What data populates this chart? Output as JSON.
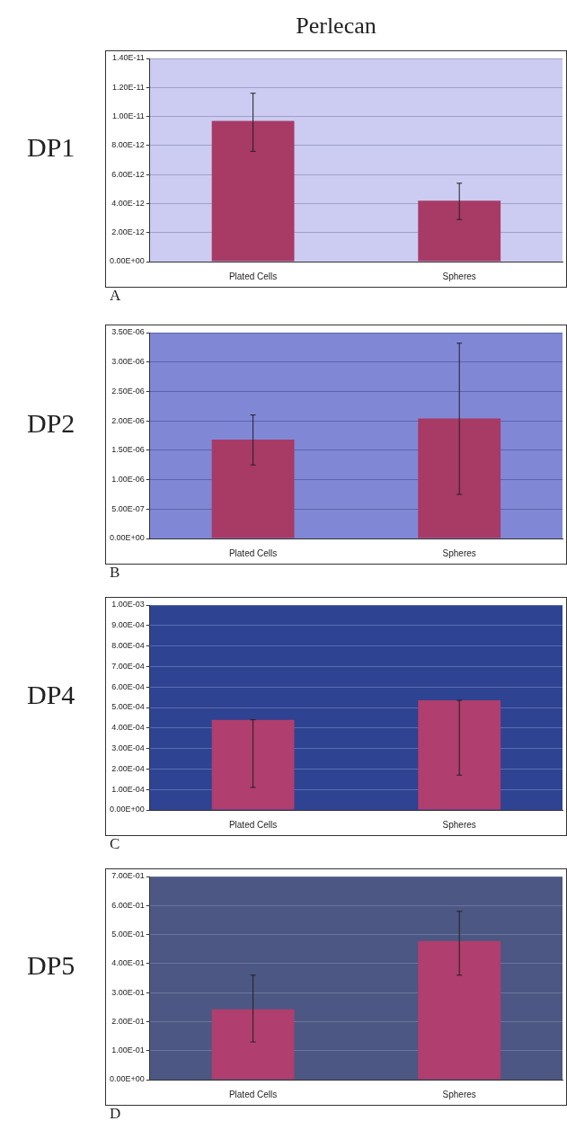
{
  "chart_data": [
    {
      "type": "bar",
      "title": "Perlecan",
      "ylabel": "DP1",
      "annotations": [
        "A"
      ],
      "categories": [
        "Plated Cells",
        "Spheres"
      ],
      "values": [
        9.7e-12,
        4.2e-12
      ],
      "errors": [
        [
          7.6e-12,
          1.16e-11
        ],
        [
          2.9e-12,
          5.4e-12
        ]
      ],
      "color": "#a83a66",
      "ylim": [
        0,
        1.4e-11
      ],
      "yticks": [
        {
          "value": 0,
          "label": "0.00E+00"
        },
        {
          "value": 2e-12,
          "label": "2.00E-12"
        },
        {
          "value": 4e-12,
          "label": "4.00E-12"
        },
        {
          "value": 6e-12,
          "label": "6.00E-12"
        },
        {
          "value": 8e-12,
          "label": "8.00E-12"
        },
        {
          "value": 1e-11,
          "label": "1.00E-11"
        },
        {
          "value": 1.2e-11,
          "label": "1.20E-11"
        },
        {
          "value": 1.4e-11,
          "label": "1.40E-11"
        }
      ],
      "grid": "y"
    },
    {
      "type": "bar",
      "ylabel": "DP2",
      "annotations": [
        "B"
      ],
      "categories": [
        "Plated Cells",
        "Spheres"
      ],
      "values": [
        1.68e-06,
        2.04e-06
      ],
      "errors": [
        [
          1.25e-06,
          2.1e-06
        ],
        [
          7.5e-07,
          3.32e-06
        ]
      ],
      "color": "#a83a66",
      "ylim": [
        0,
        3.5e-06
      ],
      "yticks": [
        {
          "value": 0,
          "label": "0.00E+00"
        },
        {
          "value": 5e-07,
          "label": "5.00E-07"
        },
        {
          "value": 1e-06,
          "label": "1.00E-06"
        },
        {
          "value": 1.5e-06,
          "label": "1.50E-06"
        },
        {
          "value": 2e-06,
          "label": "2.00E-06"
        },
        {
          "value": 2.5e-06,
          "label": "2.50E-06"
        },
        {
          "value": 3e-06,
          "label": "3.00E-06"
        },
        {
          "value": 3.5e-06,
          "label": "3.50E-06"
        }
      ],
      "grid": "y"
    },
    {
      "type": "bar",
      "ylabel": "DP4",
      "annotations": [
        "C"
      ],
      "categories": [
        "Plated Cells",
        "Spheres"
      ],
      "values": [
        0.00044,
        0.000535
      ],
      "errors": [
        [
          0.00011,
          0.00044
        ],
        [
          0.00017,
          0.000535
        ]
      ],
      "color": "#b03e6e",
      "ylim": [
        0,
        0.001
      ],
      "yticks": [
        {
          "value": 0,
          "label": "0.00E+00"
        },
        {
          "value": 0.0001,
          "label": "1.00E-04"
        },
        {
          "value": 0.0002,
          "label": "2.00E-04"
        },
        {
          "value": 0.0003,
          "label": "3.00E-04"
        },
        {
          "value": 0.0004,
          "label": "4.00E-04"
        },
        {
          "value": 0.0005,
          "label": "5.00E-04"
        },
        {
          "value": 0.0006,
          "label": "6.00E-04"
        },
        {
          "value": 0.0007,
          "label": "7.00E-04"
        },
        {
          "value": 0.0008,
          "label": "8.00E-04"
        },
        {
          "value": 0.0009,
          "label": "9.00E-04"
        },
        {
          "value": 0.001,
          "label": "1.00E-03"
        }
      ],
      "grid": "y"
    },
    {
      "type": "bar",
      "ylabel": "DP5",
      "annotations": [
        "D"
      ],
      "categories": [
        "Plated Cells",
        "Spheres"
      ],
      "values": [
        0.242,
        0.478
      ],
      "errors": [
        [
          0.13,
          0.36
        ],
        [
          0.36,
          0.58
        ]
      ],
      "color": "#b03e6e",
      "ylim": [
        0,
        0.7
      ],
      "yticks": [
        {
          "value": 0,
          "label": "0.00E+00"
        },
        {
          "value": 0.1,
          "label": "1.00E-01"
        },
        {
          "value": 0.2,
          "label": "2.00E-01"
        },
        {
          "value": 0.3,
          "label": "3.00E-01"
        },
        {
          "value": 0.4,
          "label": "4.00E-01"
        },
        {
          "value": 0.5,
          "label": "5.00E-01"
        },
        {
          "value": 0.6,
          "label": "6.00E-01"
        },
        {
          "value": 0.7,
          "label": "7.00E-01"
        }
      ],
      "grid": "y"
    }
  ]
}
